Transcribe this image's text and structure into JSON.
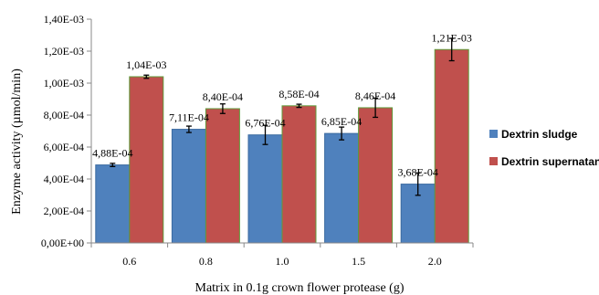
{
  "chart_data": {
    "type": "bar",
    "xlabel": "Matrix in 0.1g crown flower protease (g)",
    "ylabel": "Enzyme activity (µmol/min)",
    "ylim": [
      0,
      0.0014
    ],
    "yticks": [
      "0,00E+00",
      "2,00E-04",
      "4,00E-04",
      "6,00E-04",
      "8,00E-04",
      "1,00E-03",
      "1,20E-03",
      "1,40E-03"
    ],
    "categories": [
      "0.6",
      "0.8",
      "1.0",
      "1.5",
      "2.0"
    ],
    "grid": false,
    "legend_position": "right",
    "series": [
      {
        "name": "Dextrin sludge",
        "color": "#4f81bd",
        "values": [
          0.000488,
          0.000711,
          0.000676,
          0.000685,
          0.000368
        ],
        "errors": [
          1e-05,
          2e-05,
          6e-05,
          4e-05,
          7e-05
        ],
        "labels": [
          "4,88E-04",
          "7,11E-04",
          "6,76E-04",
          "6,85E-04",
          "3,68E-04"
        ]
      },
      {
        "name": "Dextrin supernatant",
        "color": "#c0504d",
        "values": [
          0.00104,
          0.00084,
          0.000858,
          0.000846,
          0.00121
        ],
        "errors": [
          1e-05,
          3e-05,
          1e-05,
          6e-05,
          7e-05
        ],
        "labels": [
          "1,04E-03",
          "8,40E-04",
          "8,58E-04",
          "8,46E-04",
          "1,21E-03"
        ]
      }
    ]
  }
}
